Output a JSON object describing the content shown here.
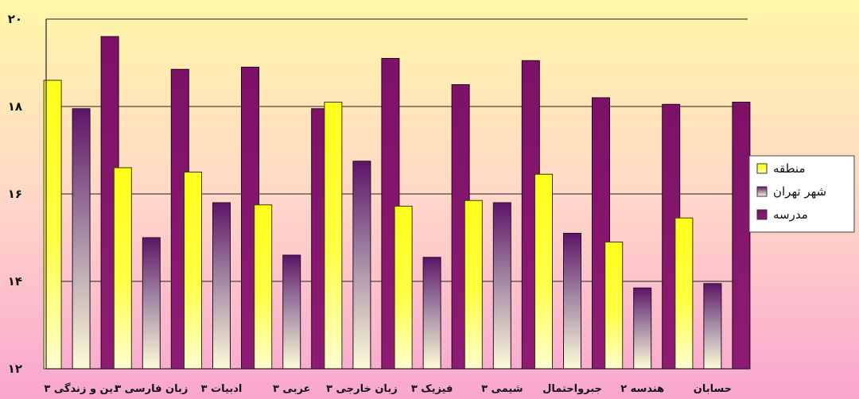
{
  "chart_data": {
    "type": "bar",
    "categories": [
      "دین و زندگی ۳",
      "زبان فارسی ۳",
      "ادبیات ۳",
      "عربی ۳",
      "زبان خارجی ۳",
      "فیزیک ۳",
      "شیمی ۳",
      "جبرواحتمال",
      "هندسه ۲",
      "حسابان"
    ],
    "series": [
      {
        "name": "منطقه",
        "color": "#FFFF33",
        "values": [
          18.6,
          16.6,
          16.5,
          15.75,
          18.1,
          15.72,
          15.85,
          16.45,
          14.9,
          15.45
        ]
      },
      {
        "name": "شهر تهران",
        "color": "#7B4A8C",
        "values": [
          17.95,
          15.0,
          15.8,
          14.6,
          16.75,
          14.55,
          15.8,
          15.1,
          13.85,
          13.95
        ]
      },
      {
        "name": "مدرسه",
        "color": "#8B1A6F",
        "values": [
          19.6,
          18.85,
          18.9,
          17.95,
          19.1,
          18.5,
          19.05,
          18.2,
          18.05,
          18.1
        ]
      }
    ],
    "yticks": [
      "۱۲",
      "۱۴",
      "۱۶",
      "۱۸",
      "۲۰"
    ],
    "ylim": [
      12,
      20
    ],
    "grid": true,
    "legend_position": "right"
  }
}
